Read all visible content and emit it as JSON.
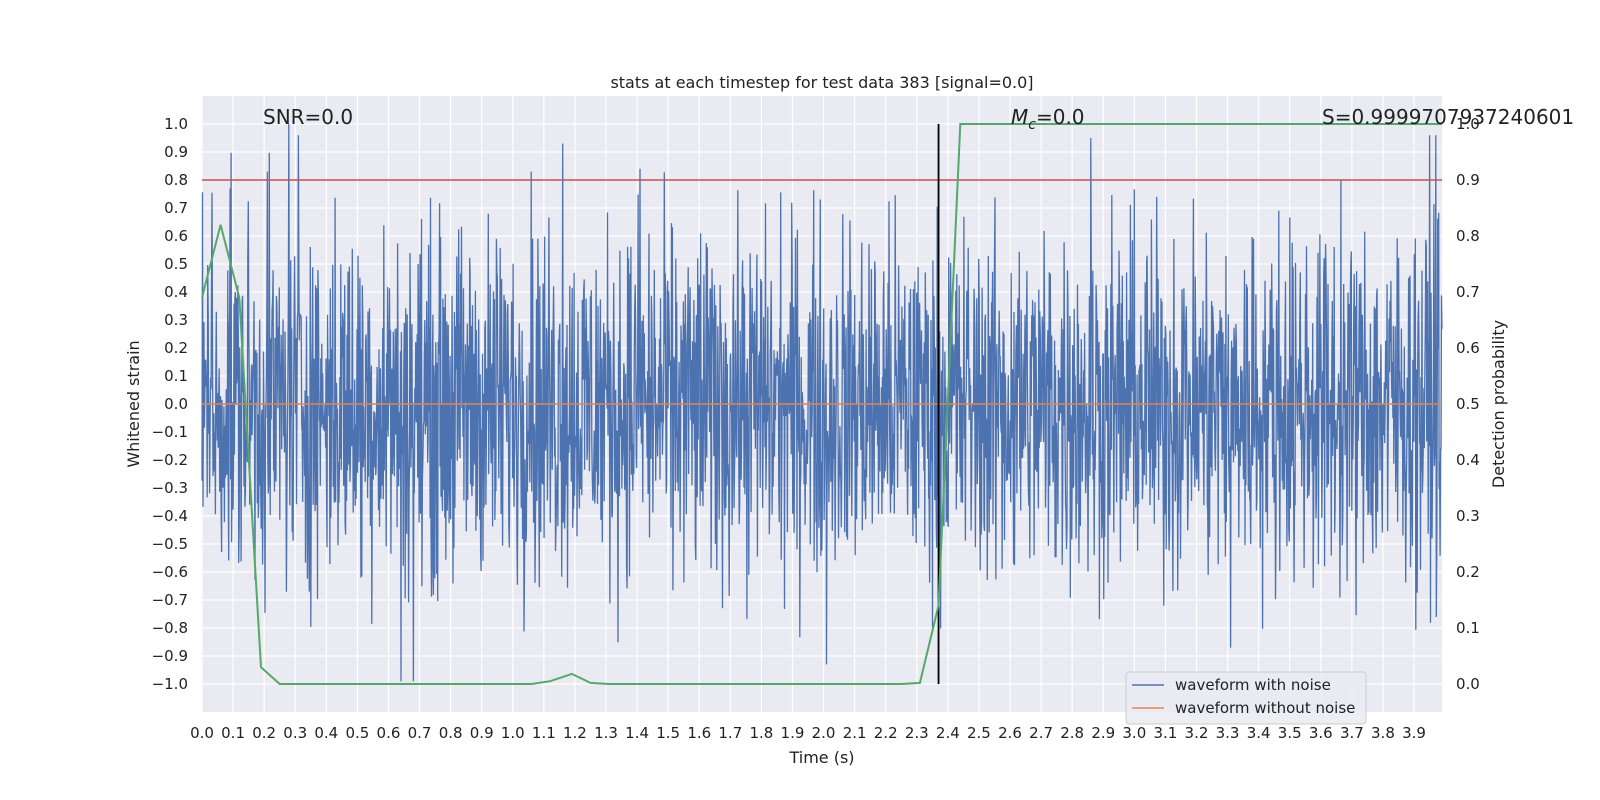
{
  "chart_data": {
    "type": "line",
    "title": "stats at each timestep for test data 383 [signal=0.0]",
    "xlabel": "Time (s)",
    "ylabel": "Whitened strain",
    "ylabel_right": "Detection probability",
    "xlim": [
      0.0,
      3.99
    ],
    "ylim": [
      -1.1,
      1.1
    ],
    "ylim_right": [
      -0.05,
      1.05
    ],
    "x_ticks": [
      "0.0",
      "0.1",
      "0.2",
      "0.3",
      "0.4",
      "0.5",
      "0.6",
      "0.7",
      "0.8",
      "0.9",
      "1.0",
      "1.1",
      "1.2",
      "1.3",
      "1.4",
      "1.5",
      "1.6",
      "1.7",
      "1.8",
      "1.9",
      "2.0",
      "2.1",
      "2.2",
      "2.3",
      "2.4",
      "2.5",
      "2.6",
      "2.7",
      "2.8",
      "2.9",
      "3.0",
      "3.1",
      "3.2",
      "3.3",
      "3.4",
      "3.5",
      "3.6",
      "3.7",
      "3.8",
      "3.9"
    ],
    "y_ticks": [
      "1.0",
      "0.9",
      "0.8",
      "0.7",
      "0.6",
      "0.5",
      "0.4",
      "0.3",
      "0.2",
      "0.1",
      "0.0",
      "-0.1",
      "-0.2",
      "-0.3",
      "-0.4",
      "-0.5",
      "-0.6",
      "-0.7",
      "-0.8",
      "-0.9",
      "-1.0"
    ],
    "y_ticks_right": [
      "1.0",
      "0.9",
      "0.8",
      "0.7",
      "0.6",
      "0.5",
      "0.4",
      "0.3",
      "0.2",
      "0.1",
      "0.0"
    ],
    "grid": true,
    "legend_position": "bottom-right",
    "annotations": {
      "snr": "SNR=0.0",
      "mc_symbol": "M",
      "mc_sub": "c",
      "mc_value": "=0.0",
      "s_value": "S=0.9999707937240601"
    },
    "threshold": {
      "axis": "left",
      "y": 0.8,
      "color": "#c44e52"
    },
    "vertical_marker": {
      "x": 2.37,
      "y_range": [
        -1.0,
        1.0
      ],
      "color": "#000000"
    },
    "series": [
      {
        "name": "waveform with noise",
        "color": "#4c72b0",
        "axis": "left",
        "kind": "noise",
        "peaks_x": [
          0.09,
          0.21,
          0.28,
          0.31,
          1.06,
          1.16,
          1.41,
          2.86,
          3.95,
          3.97
        ],
        "peaks_y": [
          0.77,
          0.83,
          1.0,
          0.96,
          0.83,
          0.93,
          0.84,
          0.95,
          0.96,
          0.96
        ],
        "troughs_x": [
          0.64,
          0.68,
          2.01,
          3.31
        ],
        "troughs_y": [
          -0.99,
          -0.99,
          -0.93,
          -0.87
        ]
      },
      {
        "name": "waveform without noise",
        "color": "#dd8452",
        "axis": "left",
        "x": [
          0.0,
          3.99
        ],
        "y": [
          0.0,
          0.0
        ]
      },
      {
        "color": "#55a868",
        "axis": "right",
        "x": [
          0.0,
          0.06,
          0.12,
          0.19,
          0.25,
          0.5,
          1.0,
          1.06,
          1.12,
          1.19,
          1.25,
          1.31,
          1.5,
          2.0,
          2.25,
          2.31,
          2.37,
          2.44,
          2.5,
          3.0,
          3.5,
          3.99
        ],
        "y": [
          0.69,
          0.82,
          0.69,
          0.03,
          0.0,
          0.0,
          0.0,
          0.0,
          0.005,
          0.018,
          0.002,
          0.0,
          0.0,
          0.0,
          0.0,
          0.002,
          0.14,
          1.0,
          1.0,
          1.0,
          1.0,
          1.0
        ]
      }
    ]
  }
}
